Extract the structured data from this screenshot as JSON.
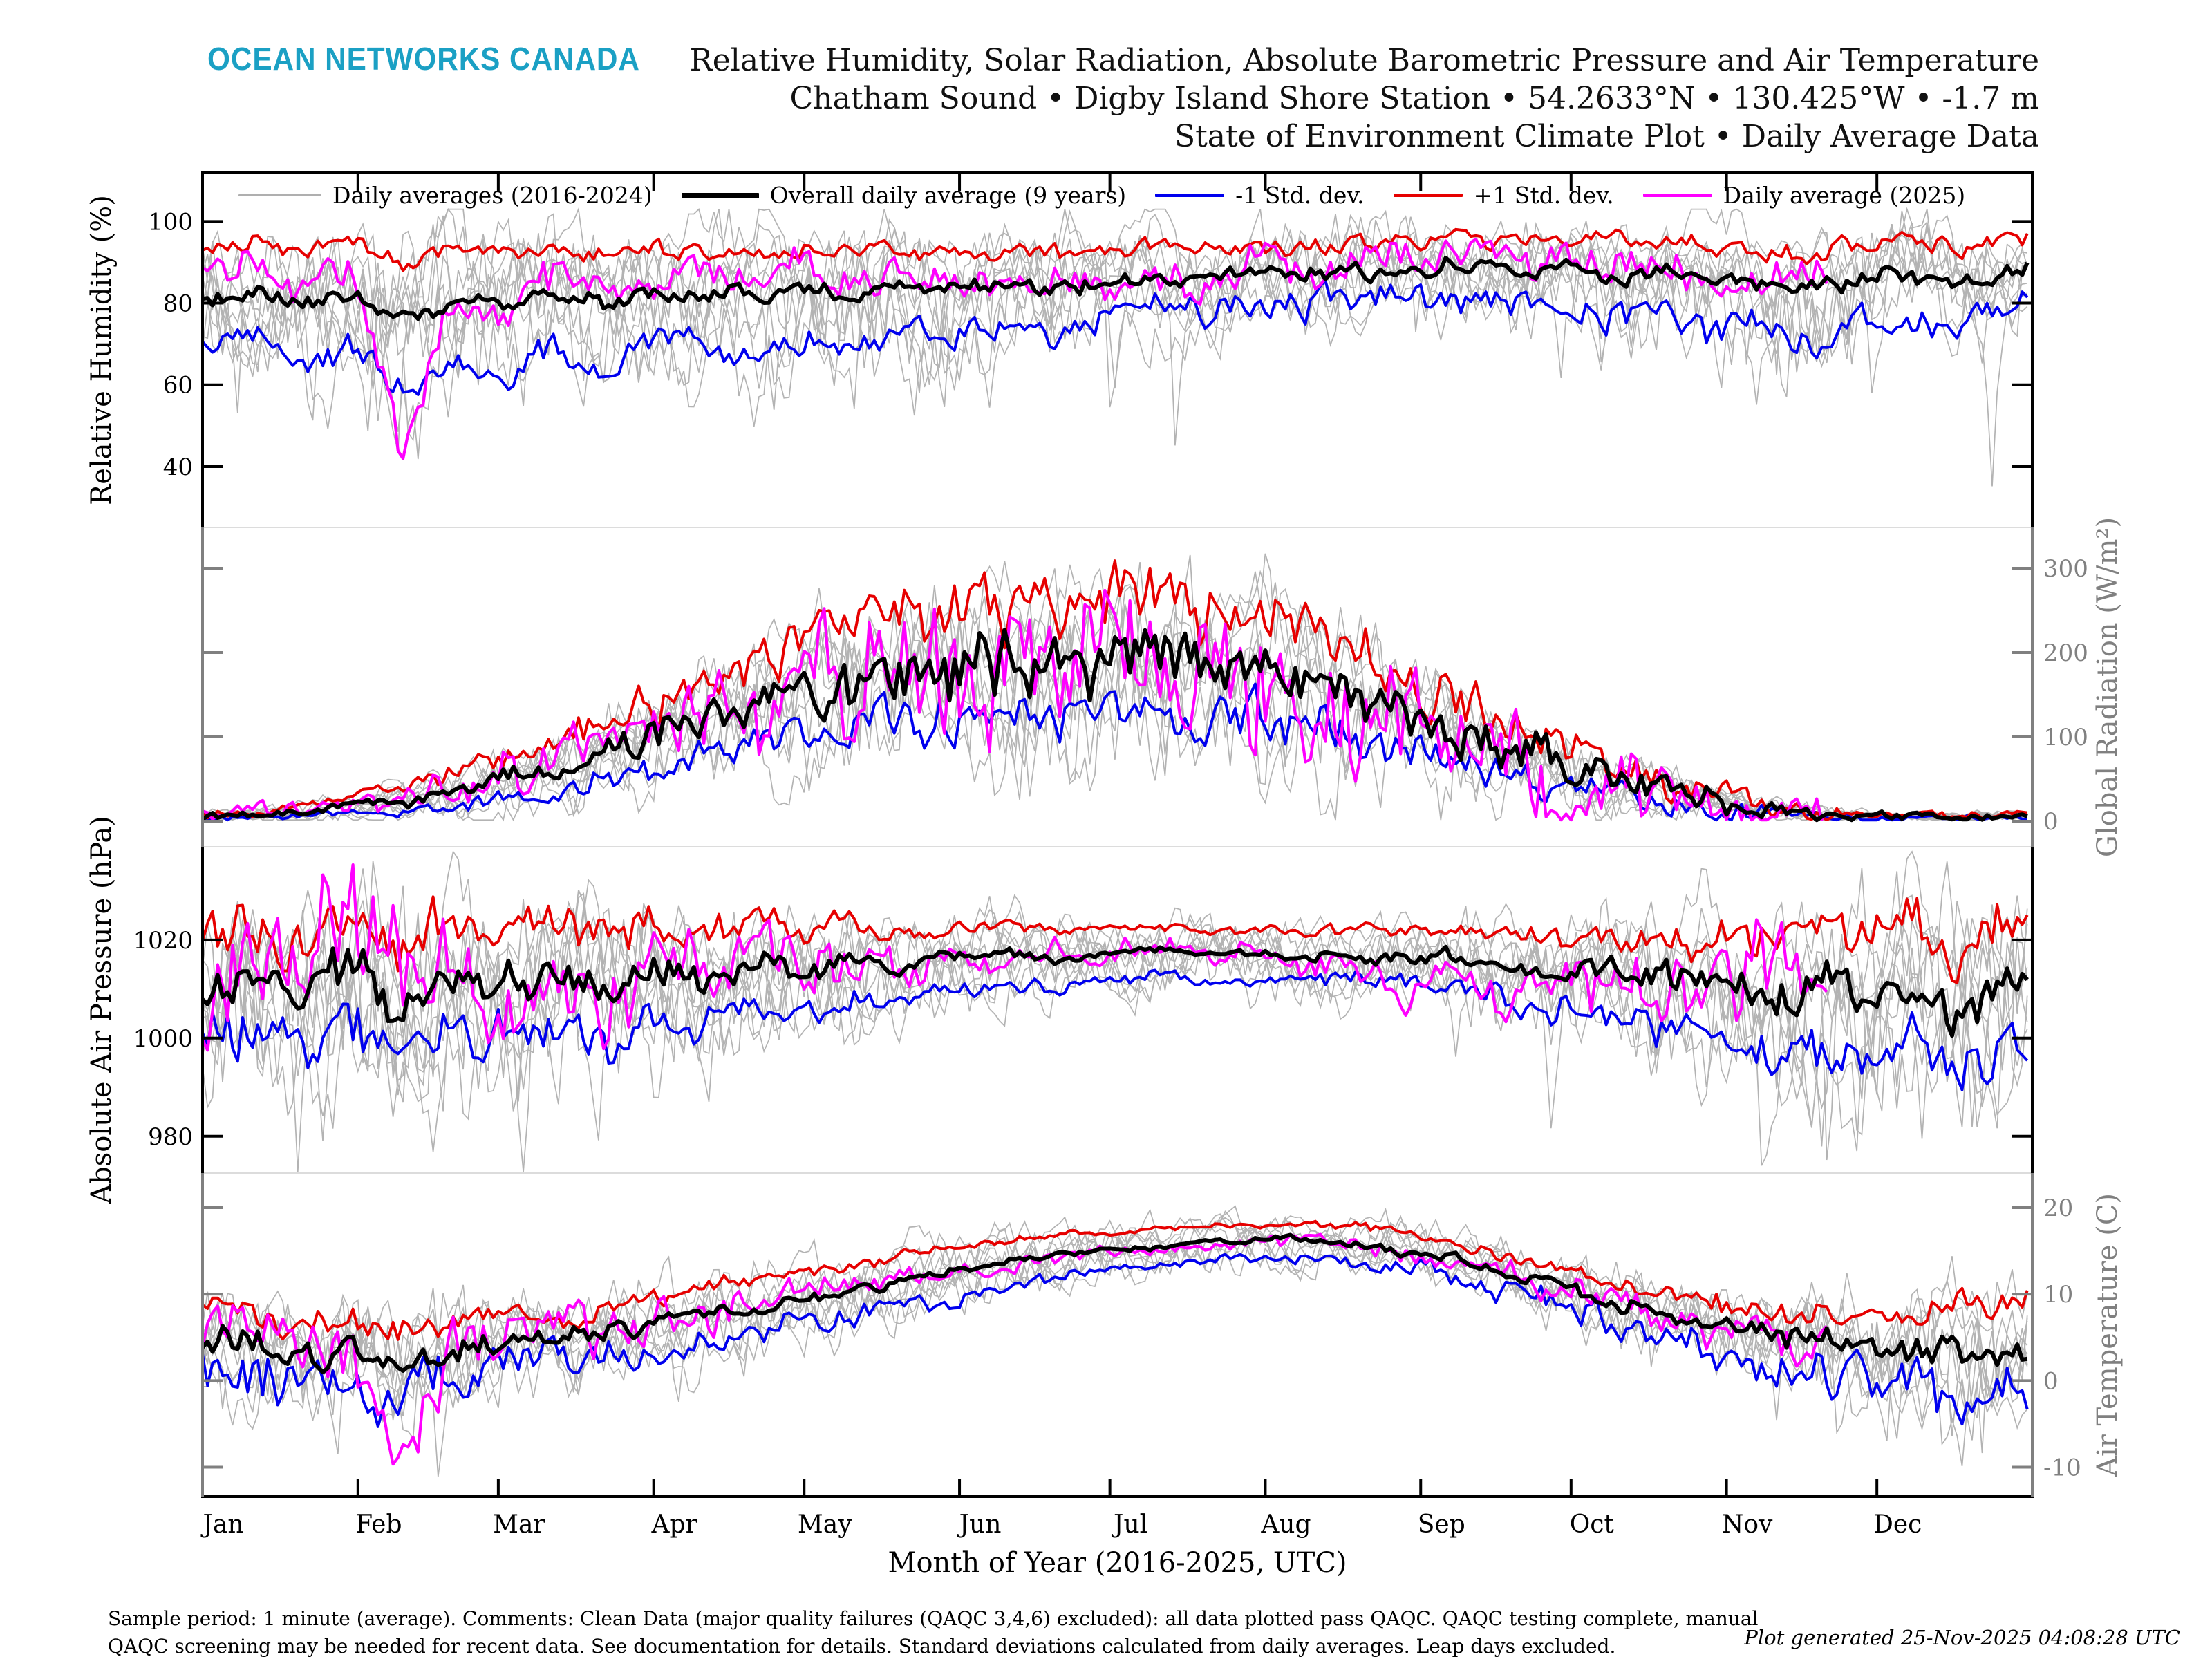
{
  "header": {
    "logo": "OCEAN NETWORKS CANADA",
    "title_lines": [
      "Relative Humidity, Solar Radiation, Absolute Barometric Pressure and Air Temperature",
      "Chatham Sound • Digby Island Shore Station • 54.2633°N • 130.425°W • -1.7 m",
      "State of Environment Climate Plot • Daily Average Data"
    ]
  },
  "legend": {
    "items": [
      {
        "label": "Daily averages (2016-2024)",
        "color": "#AFAFAF",
        "weight": 3,
        "len": 120
      },
      {
        "label": "Overall daily average (9 years)",
        "color": "#000000",
        "weight": 8,
        "len": 112
      },
      {
        "label": "-1 Std. dev.",
        "color": "#0000EE",
        "weight": 5,
        "len": 100
      },
      {
        "label": "+1 Std. dev.",
        "color": "#E60000",
        "weight": 5,
        "len": 100
      },
      {
        "label": "Daily average (2025)",
        "color": "#FF00FF",
        "weight": 5,
        "len": 100
      }
    ]
  },
  "footer": {
    "line1": "Sample period: 1 minute (average). Comments: Clean Data (major quality failures (QAQC 3,4,6) excluded): all data plotted pass QAQC. QAQC testing complete, manual",
    "line2": "QAQC screening may be needed for recent data. See documentation for details. Standard deviations calculated from daily averages. Leap days excluded.",
    "generated": "Plot generated 25-Nov-2025 04:08:28 UTC"
  },
  "chart_data": {
    "type": "line",
    "title": "Relative Humidity, Solar Radiation, Absolute Barometric Pressure and Air Temperature — Chatham Sound, Digby Island Shore Station",
    "x_axis": {
      "label": "Month of Year (2016-2025, UTC)",
      "months": [
        "Jan",
        "Feb",
        "Mar",
        "Apr",
        "May",
        "Jun",
        "Jul",
        "Aug",
        "Sep",
        "Oct",
        "Nov",
        "Dec"
      ],
      "month_start_days": [
        0,
        31,
        59,
        90,
        120,
        151,
        181,
        212,
        243,
        273,
        304,
        334
      ],
      "days_per_year": 365
    },
    "series_meta": {
      "gray_label": "Daily averages (2016-2024)",
      "mean_label": "Overall daily average (9 years)",
      "minus_label": "-1 Std. dev.",
      "plus_label": "+1 Std. dev.",
      "y2025_label": "Daily average (2025)",
      "n_gray_years": 9,
      "y2025_end_day": 324,
      "colors": {
        "gray": "#B3B3B3",
        "mean": "#000000",
        "minus": "#0000EE",
        "plus": "#E60000",
        "y2025": "#FF00FF"
      },
      "widths": {
        "gray": 1.7,
        "mean": 6,
        "minus": 4,
        "plus": 4,
        "y2025": 4.2
      }
    },
    "control_days_step": 10,
    "panels": [
      {
        "id": "relative-humidity",
        "ylabel": "Relative Humidity (%)",
        "label_side": "left",
        "axis_color": "#000000",
        "ylim": [
          25.1,
          111.9
        ],
        "yticks": [
          100,
          80,
          60,
          40
        ],
        "vclip": [
          25.2,
          103
        ],
        "seasonal": "none",
        "seed": 11,
        "sigma": {
          "mean": [
            1.2,
            0.9
          ],
          "plus": [
            1.2,
            0.9
          ],
          "minus": [
            2.2,
            1.6
          ],
          "y2025": [
            2.6,
            2.0
          ],
          "gray_jitter": 2.5
        },
        "gray_dip": {
          "chance": 0.007,
          "min": 14,
          "max": 34
        },
        "mean": [
          81,
          82,
          80,
          82,
          76,
          80,
          80,
          82,
          80,
          82,
          83,
          82,
          84,
          83,
          84,
          83,
          85,
          84,
          86,
          87,
          86,
          88,
          87,
          88,
          88,
          89,
          88,
          89,
          87,
          88,
          86,
          85,
          84,
          85,
          86,
          84,
          88
        ],
        "plus": [
          93,
          94,
          92,
          95,
          90,
          93,
          92,
          93,
          92,
          93,
          93,
          92,
          93,
          93,
          93,
          92,
          93,
          93,
          93,
          94,
          93,
          94,
          94,
          95,
          95,
          95,
          95,
          96,
          95,
          95,
          94,
          93,
          92,
          94,
          95,
          93,
          95
        ],
        "minus": [
          70,
          72,
          65,
          70,
          58,
          65,
          62,
          70,
          65,
          70,
          72,
          68,
          72,
          70,
          73,
          70,
          75,
          74,
          78,
          79,
          78,
          81,
          80,
          81,
          81,
          82,
          80,
          82,
          76,
          79,
          74,
          72,
          70,
          74,
          77,
          72,
          80
        ],
        "y2025": [
          90,
          92,
          84,
          86,
          40,
          82,
          78,
          86,
          82,
          86,
          88,
          85,
          90,
          86,
          88,
          84,
          88,
          86,
          84,
          88,
          86,
          90,
          88,
          90,
          92,
          90,
          92,
          90,
          88,
          90,
          86,
          82,
          88,
          null,
          null,
          null,
          null
        ]
      },
      {
        "id": "global-radiation",
        "ylabel": "Global Radiation (W/m²)",
        "label_side": "right",
        "axis_color": "#808080",
        "ylim": [
          -30.3,
          348.4
        ],
        "yticks": [
          300,
          200,
          100,
          0
        ],
        "vclip": [
          1.5,
          345
        ],
        "seasonal": "summer",
        "seed": 22,
        "sigma": {
          "mean": [
            20,
            16
          ],
          "plus": [
            22,
            18
          ],
          "minus": [
            15,
            12
          ],
          "y2025": [
            45,
            35
          ],
          "gray_jitter": 20
        },
        "gray_dip": {
          "chance": 0.0,
          "min": 0,
          "max": 0
        },
        "mean": [
          6,
          8,
          12,
          18,
          25,
          35,
          50,
          65,
          80,
          100,
          120,
          140,
          155,
          170,
          175,
          185,
          190,
          195,
          200,
          195,
          190,
          180,
          170,
          150,
          130,
          110,
          90,
          70,
          55,
          40,
          25,
          15,
          10,
          7,
          5,
          5,
          6
        ],
        "plus": [
          9,
          12,
          18,
          28,
          40,
          55,
          75,
          95,
          115,
          140,
          165,
          190,
          210,
          230,
          240,
          250,
          255,
          260,
          265,
          258,
          250,
          240,
          225,
          200,
          175,
          150,
          120,
          95,
          72,
          52,
          34,
          20,
          13,
          9,
          7,
          7,
          8
        ],
        "minus": [
          3,
          4,
          6,
          9,
          12,
          18,
          28,
          38,
          50,
          62,
          78,
          92,
          102,
          112,
          115,
          122,
          126,
          130,
          135,
          132,
          128,
          120,
          112,
          98,
          85,
          70,
          58,
          45,
          35,
          25,
          15,
          9,
          6,
          4,
          3,
          3,
          4
        ],
        "y2025": [
          6,
          9,
          14,
          20,
          28,
          40,
          55,
          72,
          90,
          110,
          130,
          150,
          165,
          180,
          185,
          190,
          185,
          195,
          200,
          190,
          185,
          175,
          165,
          145,
          120,
          100,
          85,
          65,
          50,
          35,
          22,
          13,
          9,
          null,
          null,
          null,
          null
        ]
      },
      {
        "id": "absolute-air-pressure",
        "ylabel": "Absolute Air Pressure (hPa)",
        "label_side": "left",
        "axis_color": "#000000",
        "ylim": [
          972.5,
          1039.0
        ],
        "yticks": [
          1020,
          1000,
          980
        ],
        "vclip": [
          972.8,
          1038
        ],
        "seasonal": "winter",
        "seed": 33,
        "sigma": {
          "mean": [
            1.8,
            1.2
          ],
          "plus": [
            2.0,
            1.4
          ],
          "minus": [
            2.4,
            1.6
          ],
          "y2025": [
            4.5,
            3.0
          ],
          "gray_jitter": 3
        },
        "gray_dip": {
          "chance": 0.005,
          "min": 8,
          "max": 22
        },
        "mean": [
          1007,
          1012,
          1010,
          1014,
          1008,
          1013,
          1010,
          1012,
          1011,
          1014,
          1013,
          1015,
          1014,
          1016,
          1015,
          1016,
          1017,
          1016,
          1017,
          1018,
          1017,
          1017,
          1016,
          1017,
          1016,
          1016,
          1015,
          1013,
          1014,
          1011,
          1012,
          1008,
          1010,
          1008,
          1011,
          1007,
          1012
        ],
        "plus": [
          1019,
          1022,
          1021,
          1025,
          1020,
          1024,
          1020,
          1023,
          1021,
          1023,
          1022,
          1023,
          1022,
          1023,
          1022,
          1022,
          1023,
          1022,
          1022,
          1023,
          1022,
          1022,
          1021,
          1022,
          1021,
          1022,
          1021,
          1020,
          1022,
          1019,
          1021,
          1017,
          1022,
          1019,
          1024,
          1018,
          1023
        ],
        "minus": [
          996,
          1001,
          998,
          1003,
          995,
          1001,
          999,
          1001,
          1000,
          1004,
          1003,
          1006,
          1005,
          1008,
          1007,
          1009,
          1010,
          1010,
          1012,
          1013,
          1012,
          1012,
          1011,
          1012,
          1011,
          1010,
          1008,
          1005,
          1006,
          1002,
          1003,
          998,
          999,
          996,
          998,
          993,
          1000
        ],
        "y2025": [
          1008,
          1018,
          1005,
          1030,
          1012,
          1024,
          1000,
          1016,
          1006,
          1018,
          1012,
          1020,
          1014,
          1018,
          1012,
          1017,
          1014,
          1018,
          1016,
          1019,
          1016,
          1018,
          1014,
          1017,
          1010,
          1015,
          1005,
          1012,
          1008,
          1014,
          1004,
          1016,
          1008,
          null,
          null,
          null,
          null
        ]
      },
      {
        "id": "air-temperature",
        "ylabel": "Air Temperature (C)",
        "label_side": "right",
        "axis_color": "#808080",
        "ylim": [
          -13.4,
          24.0
        ],
        "yticks": [
          20,
          10,
          0,
          -10
        ],
        "vclip": [
          -13.2,
          23.5
        ],
        "seasonal": "winter",
        "seed": 44,
        "sigma": {
          "mean": [
            0.55,
            0.4
          ],
          "plus": [
            0.6,
            0.45
          ],
          "minus": [
            1.0,
            0.8
          ],
          "y2025": [
            1.2,
            0.9
          ],
          "gray_jitter": 1.1
        },
        "gray_dip": {
          "chance": 0.006,
          "min": 3,
          "max": 8
        },
        "mean": [
          4.5,
          4,
          3,
          3.5,
          2,
          3.5,
          4,
          5,
          5.5,
          6.5,
          7.5,
          8.5,
          9.5,
          10.5,
          11.5,
          12.5,
          13.5,
          14.5,
          15,
          15.5,
          16,
          16.2,
          16.5,
          16,
          15,
          14,
          12.5,
          11,
          9.5,
          8,
          6.5,
          5.5,
          4.5,
          4,
          3.5,
          3,
          3.5
        ],
        "plus": [
          7.5,
          7,
          6.5,
          7,
          6,
          7,
          7.5,
          8,
          8.5,
          9.5,
          10.5,
          11.5,
          12.5,
          13.5,
          14.5,
          15.5,
          16,
          17,
          17.2,
          17.5,
          17.8,
          18,
          18.2,
          17.8,
          17,
          16,
          14.5,
          12.8,
          11.5,
          10,
          8.8,
          8,
          7.5,
          7.8,
          7,
          8,
          8.5
        ],
        "minus": [
          1,
          0.5,
          -1,
          0,
          -2.5,
          0,
          1,
          2,
          2.5,
          3.5,
          4.5,
          5.5,
          6.5,
          7.5,
          8.5,
          9.5,
          11,
          12,
          12.8,
          13.2,
          13.8,
          14.2,
          14.5,
          14,
          13,
          12,
          10.5,
          8.8,
          7,
          5.5,
          3.8,
          2.5,
          1,
          0,
          -0.5,
          -2,
          -1
        ],
        "y2025": [
          5,
          6,
          3,
          4,
          -7,
          3,
          4.5,
          6,
          5.5,
          7,
          8,
          9,
          10,
          11,
          11.5,
          12.5,
          13,
          14,
          15,
          15.2,
          15.8,
          16,
          16.3,
          15.8,
          14.5,
          13.8,
          12,
          10.5,
          9,
          7.5,
          6,
          5,
          4,
          null,
          null,
          null,
          null
        ]
      }
    ]
  }
}
